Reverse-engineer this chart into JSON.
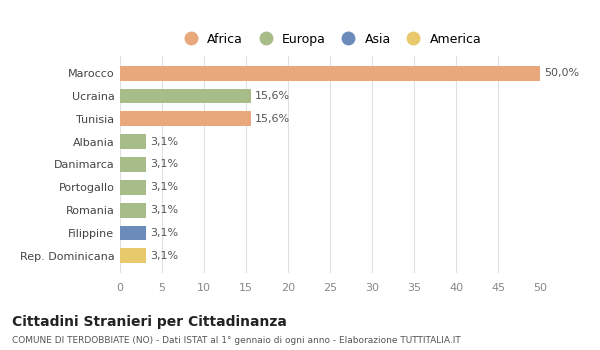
{
  "categories": [
    "Marocco",
    "Ucraina",
    "Tunisia",
    "Albania",
    "Danimarca",
    "Portogallo",
    "Romania",
    "Filippine",
    "Rep. Dominicana"
  ],
  "values": [
    50.0,
    15.6,
    15.6,
    3.1,
    3.1,
    3.1,
    3.1,
    3.1,
    3.1
  ],
  "labels": [
    "50,0%",
    "15,6%",
    "15,6%",
    "3,1%",
    "3,1%",
    "3,1%",
    "3,1%",
    "3,1%",
    "3,1%"
  ],
  "bar_colors": [
    "#e8a87c",
    "#a8bc8a",
    "#e8a87c",
    "#a8bc8a",
    "#a8bc8a",
    "#a8bc8a",
    "#a8bc8a",
    "#6b8cba",
    "#e8c96b"
  ],
  "legend_labels": [
    "Africa",
    "Europa",
    "Asia",
    "America"
  ],
  "legend_colors": [
    "#e8a87c",
    "#a8bc8a",
    "#6b8cba",
    "#e8c96b"
  ],
  "xlim": [
    0,
    50
  ],
  "xticks": [
    0,
    5,
    10,
    15,
    20,
    25,
    30,
    35,
    40,
    45,
    50
  ],
  "title": "Cittadini Stranieri per Cittadinanza",
  "subtitle": "COMUNE DI TERDOBBIATE (NO) - Dati ISTAT al 1° gennaio di ogni anno - Elaborazione TUTTITALIA.IT",
  "background_color": "#ffffff",
  "grid_color": "#e0e0e0"
}
